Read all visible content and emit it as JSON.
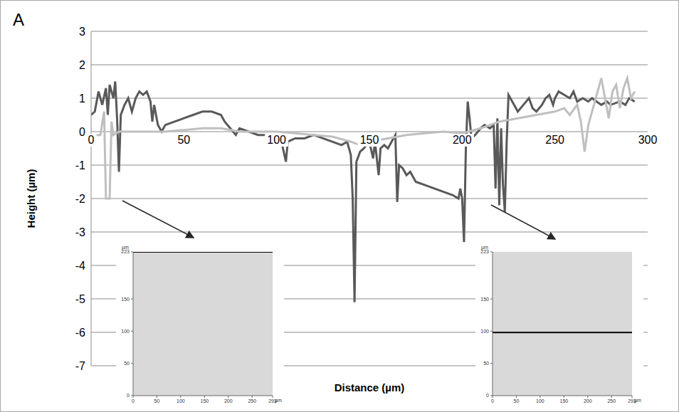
{
  "panel_label": "A",
  "chart_data": [
    {
      "type": "line",
      "x_label": "Distance (µm)",
      "y_label": "Height (µm)",
      "xlim": [
        0,
        300
      ],
      "xticks": [
        0,
        50,
        100,
        150,
        200,
        250,
        300
      ],
      "ylim": [
        -7,
        3
      ],
      "yticks": [
        -7,
        -6,
        -5,
        -4,
        -3,
        -2,
        -1,
        0,
        1,
        2,
        3
      ],
      "grid": true,
      "series": [
        {
          "color": "#595959",
          "x": [
            0,
            2,
            4,
            6,
            8,
            9,
            10,
            12,
            13,
            14,
            15,
            16,
            18,
            20,
            22,
            24,
            26,
            28,
            30,
            32,
            33,
            34,
            36,
            38,
            40,
            45,
            50,
            55,
            60,
            65,
            70,
            72,
            75,
            78,
            80,
            85,
            90,
            95,
            98,
            100,
            103,
            105,
            106,
            110,
            115,
            120,
            125,
            130,
            135,
            138,
            140,
            141,
            142,
            143,
            145,
            147,
            150,
            152,
            153,
            155,
            156,
            158,
            160,
            162,
            164,
            165,
            166,
            168,
            170,
            172,
            175,
            180,
            185,
            190,
            195,
            198,
            199,
            200,
            201,
            202,
            203,
            204,
            205,
            207,
            210,
            212,
            215,
            217,
            218,
            219,
            220,
            221,
            222,
            223,
            224,
            225,
            227,
            230,
            233,
            236,
            238,
            240,
            243,
            245,
            247,
            249,
            250,
            252,
            255,
            258,
            260,
            262,
            265,
            268,
            270,
            275,
            278,
            280,
            285,
            288,
            290,
            293
          ],
          "values": [
            0.5,
            0.6,
            1.2,
            0.8,
            1.3,
            0.5,
            1.4,
            1.0,
            1.5,
            0.4,
            -1.2,
            0.5,
            0.8,
            1.0,
            0.6,
            1.0,
            1.2,
            1.1,
            1.2,
            0.9,
            0.3,
            0.8,
            0.2,
            0.0,
            0.2,
            0.3,
            0.4,
            0.5,
            0.6,
            0.6,
            0.5,
            0.3,
            0.1,
            -0.1,
            0.1,
            0.0,
            -0.1,
            -0.1,
            -0.3,
            -0.2,
            -0.4,
            -0.9,
            -0.3,
            -0.2,
            -0.2,
            -0.1,
            -0.2,
            -0.3,
            -0.4,
            -0.3,
            -0.7,
            -2.0,
            -5.1,
            -0.9,
            -0.6,
            -0.5,
            -0.3,
            -0.8,
            -0.3,
            -1.3,
            -0.5,
            -0.4,
            -0.5,
            -0.3,
            -0.1,
            -2.1,
            -1.0,
            -1.1,
            -1.3,
            -1.2,
            -1.5,
            -1.6,
            -1.7,
            -1.8,
            -1.9,
            -2.0,
            -1.7,
            -2.0,
            -3.3,
            -0.5,
            0.9,
            0.4,
            -0.2,
            -0.1,
            0.1,
            0.2,
            0.1,
            0.2,
            -1.7,
            0.4,
            -2.2,
            0.1,
            -1.6,
            -2.4,
            -0.3,
            1.1,
            0.9,
            0.6,
            0.8,
            1.0,
            0.7,
            0.6,
            0.8,
            1.0,
            1.1,
            0.8,
            1.0,
            1.2,
            1.1,
            1.0,
            1.2,
            0.9,
            1.0,
            0.9,
            1.0,
            0.8,
            0.9,
            0.8,
            0.9,
            0.8,
            1.0,
            0.9
          ]
        },
        {
          "color": "#bfbfbf",
          "x": [
            0,
            5,
            7,
            8,
            10,
            11,
            12,
            15,
            20,
            30,
            40,
            50,
            60,
            70,
            80,
            90,
            100,
            110,
            120,
            130,
            140,
            145,
            150,
            160,
            170,
            180,
            190,
            200,
            210,
            220,
            230,
            240,
            250,
            255,
            258,
            262,
            264,
            266,
            268,
            270,
            273,
            275,
            277,
            279,
            281,
            283,
            285,
            287,
            289,
            291,
            293
          ],
          "values": [
            -0.1,
            -0.1,
            0.6,
            -2.0,
            -2.0,
            0.3,
            -0.1,
            0.0,
            0.0,
            0.0,
            0.0,
            0.05,
            0.1,
            0.1,
            0.0,
            0.0,
            0.0,
            -0.05,
            -0.1,
            -0.15,
            -0.3,
            -0.4,
            -0.3,
            -0.2,
            -0.1,
            -0.05,
            0.0,
            -0.05,
            0.1,
            0.3,
            0.4,
            0.5,
            0.6,
            0.7,
            0.5,
            0.8,
            0.3,
            -0.6,
            0.2,
            0.6,
            1.2,
            1.6,
            1.0,
            0.4,
            1.2,
            1.4,
            0.7,
            1.3,
            1.6,
            1.0,
            1.2
          ]
        }
      ]
    },
    {
      "type": "line",
      "x_label": "µm",
      "y_label": "µm",
      "xlim": [
        0,
        293
      ],
      "xticks": [
        0,
        50,
        100,
        150,
        200,
        250,
        293
      ],
      "ylim": [
        0,
        223
      ],
      "yticks": [
        0,
        50,
        100,
        150,
        223
      ],
      "series": [
        {
          "color": "#000000",
          "x": [
            0,
            293
          ],
          "values": [
            223,
            223
          ]
        }
      ]
    },
    {
      "type": "line",
      "x_label": "µm",
      "y_label": "µm",
      "xlim": [
        0,
        293
      ],
      "xticks": [
        0,
        50,
        100,
        150,
        200,
        250,
        293
      ],
      "ylim": [
        0,
        223
      ],
      "yticks": [
        0,
        50,
        100,
        150,
        223
      ],
      "series": [
        {
          "color": "#000000",
          "x": [
            0,
            293
          ],
          "values": [
            98,
            98
          ]
        }
      ]
    }
  ]
}
